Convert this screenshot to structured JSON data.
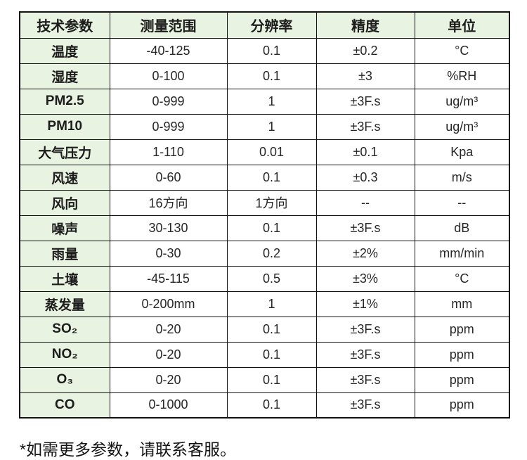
{
  "colors": {
    "header_background": "#e9f3e1",
    "param_column_background": "#e9f3e1",
    "cell_background": "#ffffff",
    "border": "#121212",
    "text": "#1c1c1c"
  },
  "table": {
    "columns": [
      "技术参数",
      "测量范围",
      "分辨率",
      "精度",
      "单位"
    ],
    "rows": [
      [
        "温度",
        "-40-125",
        "0.1",
        "±0.2",
        "°C"
      ],
      [
        "湿度",
        "0-100",
        "0.1",
        "±3",
        "%RH"
      ],
      [
        "PM2.5",
        "0-999",
        "1",
        "±3F.s",
        "ug/m³"
      ],
      [
        "PM10",
        "0-999",
        "1",
        "±3F.s",
        "ug/m³"
      ],
      [
        "大气压力",
        "1-110",
        "0.01",
        "±0.1",
        "Kpa"
      ],
      [
        "风速",
        "0-60",
        "0.1",
        "±0.3",
        "m/s"
      ],
      [
        "风向",
        "16方向",
        "1方向",
        "--",
        "--"
      ],
      [
        "噪声",
        "30-130",
        "0.1",
        "±3F.s",
        "dB"
      ],
      [
        "雨量",
        "0-30",
        "0.2",
        "±2%",
        "mm/min"
      ],
      [
        "土壤",
        "-45-115",
        "0.5",
        "±3%",
        "°C"
      ],
      [
        "蒸发量",
        "0-200mm",
        "1",
        "±1%",
        "mm"
      ],
      [
        "SO₂",
        "0-20",
        "0.1",
        "±3F.s",
        "ppm"
      ],
      [
        "NO₂",
        "0-20",
        "0.1",
        "±3F.s",
        "ppm"
      ],
      [
        "O₃",
        "0-20",
        "0.1",
        "±3F.s",
        "ppm"
      ],
      [
        "CO",
        "0-1000",
        "0.1",
        "±3F.s",
        "ppm"
      ]
    ]
  },
  "footer": {
    "note": "*如需更多参数，请联系客服。"
  }
}
